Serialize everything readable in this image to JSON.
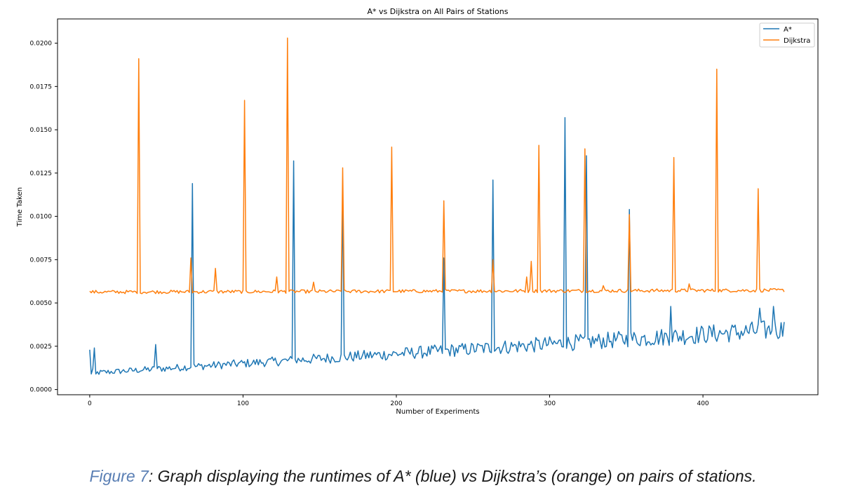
{
  "caption": {
    "figure_label": "Figure 7",
    "text": ": Graph displaying the runtimes of A* (blue) vs Dijkstra’s (orange) on pairs of stations."
  },
  "chart_data": {
    "type": "line",
    "title": "A* vs Dijkstra on All Pairs of Stations",
    "xlabel": "Number of Experiments",
    "ylabel": "Time Taken",
    "xlim": [
      -21,
      475
    ],
    "ylim": [
      -0.0003,
      0.0214
    ],
    "xticks": [
      0,
      100,
      200,
      300,
      400
    ],
    "yticks": [
      0.0,
      0.0025,
      0.005,
      0.0075,
      0.01,
      0.0125,
      0.015,
      0.0175,
      0.02
    ],
    "ytick_labels": [
      "0.0000",
      "0.0025",
      "0.0050",
      "0.0075",
      "0.0100",
      "0.0125",
      "0.0150",
      "0.0175",
      "0.0200"
    ],
    "grid": false,
    "legend_position": "top-right",
    "x_count": 454,
    "series": [
      {
        "name": "A*",
        "color": "#1f77b4",
        "base_start": 0.0009,
        "base_end": 0.0033,
        "noise_start": 0.0003,
        "noise_end": 0.0012,
        "points": [
          [
            0,
            0.0023
          ],
          [
            1,
            0.0009
          ],
          [
            2,
            0.0012
          ],
          [
            3,
            0.0024
          ],
          [
            4,
            0.0009
          ],
          [
            43,
            0.0026
          ],
          [
            67,
            0.0119
          ],
          [
            133,
            0.0132
          ],
          [
            165,
            0.0115
          ],
          [
            231,
            0.0076
          ],
          [
            263,
            0.0121
          ],
          [
            310,
            0.0157
          ],
          [
            324,
            0.0135
          ],
          [
            352,
            0.0104
          ],
          [
            379,
            0.0048
          ],
          [
            437,
            0.0047
          ],
          [
            446,
            0.0048
          ],
          [
            453,
            0.0039
          ]
        ]
      },
      {
        "name": "Dijkstra",
        "color": "#ff7f0e",
        "base_start": 0.0056,
        "base_end": 0.0057,
        "noise_start": 0.0002,
        "noise_end": 0.0002,
        "points": [
          [
            32,
            0.0191
          ],
          [
            66,
            0.0076
          ],
          [
            82,
            0.007
          ],
          [
            101,
            0.0167
          ],
          [
            122,
            0.0065
          ],
          [
            129,
            0.0203
          ],
          [
            146,
            0.0062
          ],
          [
            165,
            0.0128
          ],
          [
            197,
            0.014
          ],
          [
            231,
            0.0109
          ],
          [
            263,
            0.0075
          ],
          [
            285,
            0.0065
          ],
          [
            288,
            0.0074
          ],
          [
            293,
            0.0141
          ],
          [
            323,
            0.0139
          ],
          [
            335,
            0.006
          ],
          [
            352,
            0.0101
          ],
          [
            381,
            0.0134
          ],
          [
            391,
            0.0061
          ],
          [
            409,
            0.0185
          ],
          [
            436,
            0.0116
          ]
        ]
      }
    ]
  }
}
